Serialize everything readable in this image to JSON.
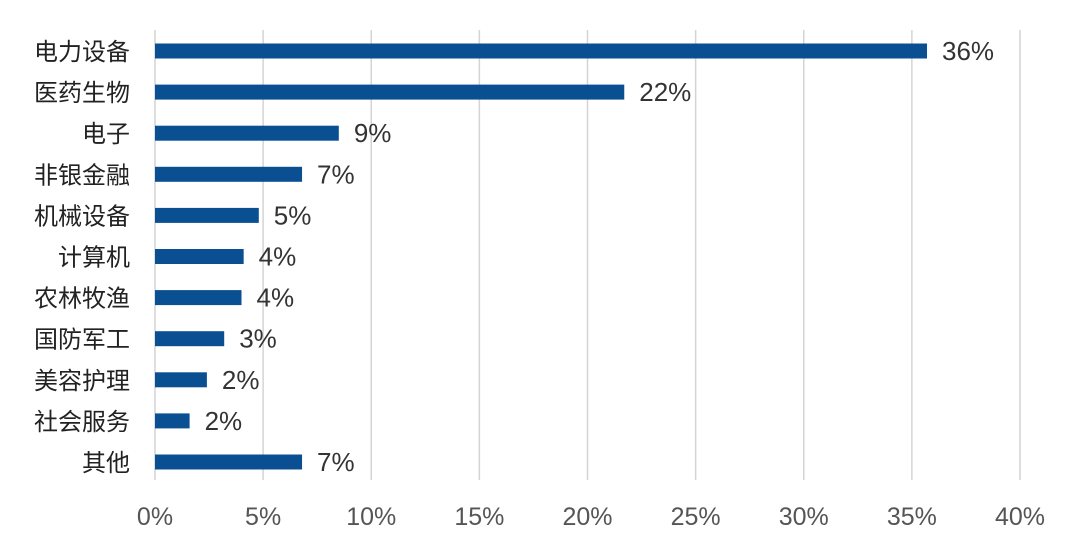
{
  "chart_data": {
    "type": "bar",
    "orientation": "horizontal",
    "categories": [
      "电力设备",
      "医药生物",
      "电子",
      "非银金融",
      "机械设备",
      "计算机",
      "农林牧渔",
      "国防军工",
      "美容护理",
      "社会服务",
      "其他"
    ],
    "values": [
      35.7,
      21.7,
      8.5,
      6.8,
      4.8,
      4.1,
      4.0,
      3.2,
      2.4,
      1.6,
      6.8
    ],
    "data_labels": [
      "36%",
      "22%",
      "9%",
      "7%",
      "5%",
      "4%",
      "4%",
      "3%",
      "2%",
      "2%",
      "7%"
    ],
    "xlim": [
      0,
      40
    ],
    "x_ticks": [
      0,
      5,
      10,
      15,
      20,
      25,
      30,
      35,
      40
    ],
    "x_tick_labels": [
      "0%",
      "5%",
      "10%",
      "15%",
      "20%",
      "25%",
      "30%",
      "35%",
      "40%"
    ],
    "title": "",
    "xlabel": "",
    "ylabel": "",
    "grid": "vertical",
    "bar_color": "#0B4F93"
  }
}
